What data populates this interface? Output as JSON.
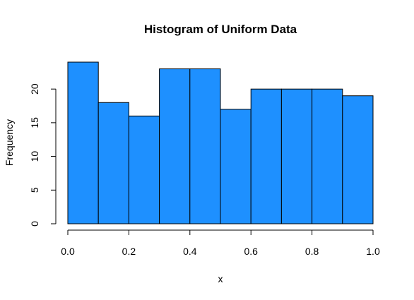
{
  "chart_data": {
    "type": "bar",
    "title": "Histogram of Uniform Data",
    "xlabel": "x",
    "ylabel": "Frequency",
    "bins": [
      {
        "x0": 0.0,
        "x1": 0.1,
        "count": 24
      },
      {
        "x0": 0.1,
        "x1": 0.2,
        "count": 18
      },
      {
        "x0": 0.2,
        "x1": 0.3,
        "count": 16
      },
      {
        "x0": 0.3,
        "x1": 0.4,
        "count": 23
      },
      {
        "x0": 0.4,
        "x1": 0.5,
        "count": 23
      },
      {
        "x0": 0.5,
        "x1": 0.6,
        "count": 17
      },
      {
        "x0": 0.6,
        "x1": 0.7,
        "count": 20
      },
      {
        "x0": 0.7,
        "x1": 0.8,
        "count": 20
      },
      {
        "x0": 0.8,
        "x1": 0.9,
        "count": 20
      },
      {
        "x0": 0.9,
        "x1": 1.0,
        "count": 19
      }
    ],
    "xlim": [
      0,
      1
    ],
    "ylim": [
      0,
      24
    ],
    "xticks": [
      0.0,
      0.2,
      0.4,
      0.6,
      0.8,
      1.0
    ],
    "xtick_labels": [
      "0.0",
      "0.2",
      "0.4",
      "0.6",
      "0.8",
      "1.0"
    ],
    "yticks": [
      0,
      5,
      10,
      15,
      20
    ],
    "ytick_labels": [
      "0",
      "5",
      "10",
      "15",
      "20"
    ],
    "grid": false,
    "bar_color": "#1E90FF"
  }
}
